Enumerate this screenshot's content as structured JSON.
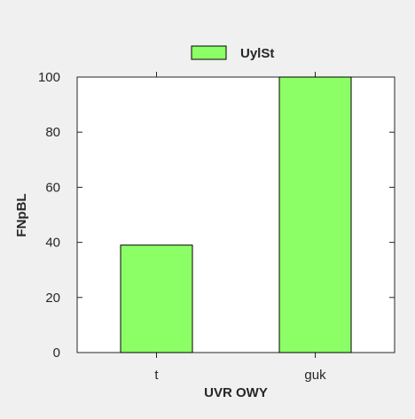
{
  "chart_data": {
    "type": "bar",
    "categories": [
      "t",
      "guk"
    ],
    "series": [
      {
        "name": "UylSt",
        "values": [
          39,
          100
        ]
      }
    ],
    "title": "",
    "xlabel": "UVR OWY",
    "ylabel": "FNpBL",
    "ylim": [
      0,
      100
    ],
    "yticks": [
      0,
      20,
      40,
      60,
      80,
      100
    ],
    "grid": false,
    "legend": "top-center"
  },
  "colors": {
    "background": "#f0f0f0",
    "plot_area": "#ffffff",
    "bar_fill": "#8cff66",
    "bar_stroke": "#000000",
    "axis": "#262626"
  }
}
